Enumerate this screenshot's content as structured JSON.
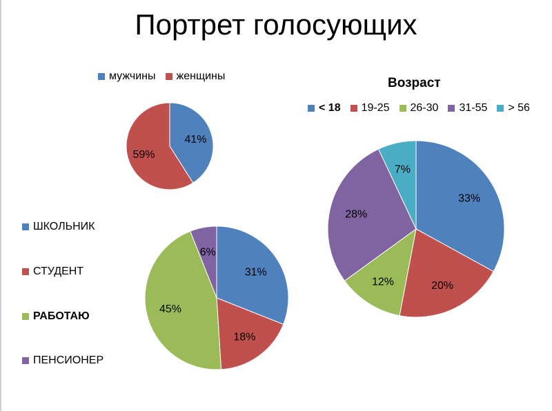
{
  "title": "Портрет голосующих",
  "chart_data": [
    {
      "type": "pie",
      "title": "",
      "categories": [
        "мужчины",
        "женщины"
      ],
      "values": [
        41,
        59
      ],
      "labels": [
        "41%",
        "59%"
      ],
      "colors": [
        "#4F81BD",
        "#C0504D"
      ],
      "legend": "top"
    },
    {
      "type": "pie",
      "title": "",
      "categories": [
        "ШКОЛЬНИК",
        "СТУДЕНТ",
        "РАБОТАЮ",
        "ПЕНСИОНЕР"
      ],
      "values": [
        31,
        18,
        45,
        6
      ],
      "labels": [
        "31%",
        "18%",
        "45%",
        "6%"
      ],
      "colors": [
        "#4F81BD",
        "#C0504D",
        "#9BBB59",
        "#8064A2"
      ],
      "legend": "left"
    },
    {
      "type": "pie",
      "title": "Возраст",
      "categories": [
        "< 18",
        "19-25",
        "26-30",
        "31-55",
        "> 56"
      ],
      "values": [
        33,
        20,
        12,
        28,
        7
      ],
      "labels": [
        "33%",
        "20%",
        "12%",
        "28%",
        "7%"
      ],
      "colors": [
        "#4F81BD",
        "#C0504D",
        "#9BBB59",
        "#8064A2",
        "#4BACC6"
      ],
      "legend": "top"
    }
  ]
}
